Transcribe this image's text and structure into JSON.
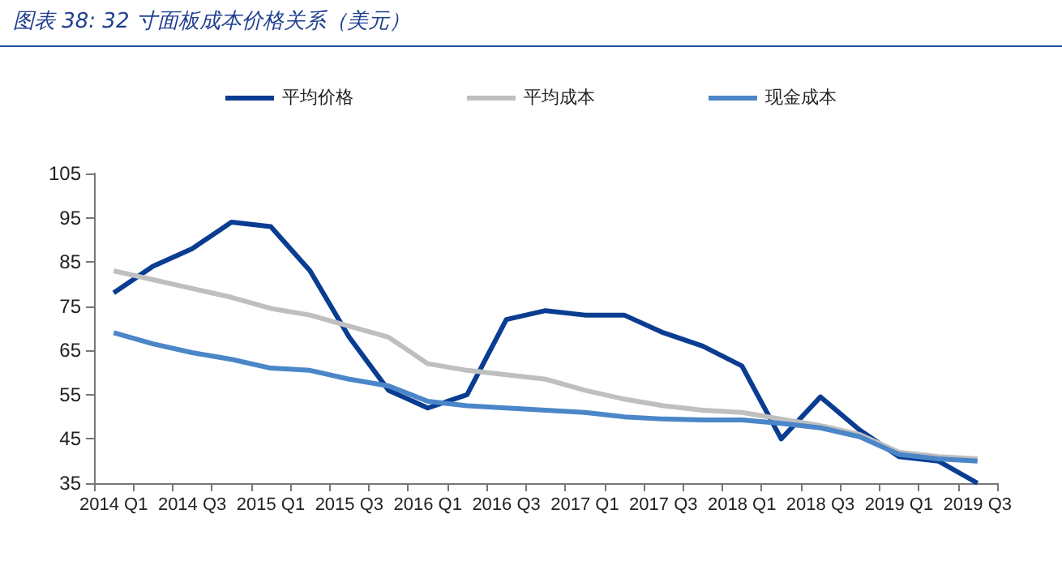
{
  "chart_data": {
    "type": "line",
    "title": "图表 38:  32 寸面板成本价格关系（美元）",
    "categories": [
      "2014 Q1",
      null,
      "2014 Q3",
      null,
      "2015 Q1",
      null,
      "2015 Q3",
      null,
      "2016 Q1",
      null,
      "2016 Q3",
      null,
      "2017 Q1",
      null,
      "2017 Q3",
      null,
      "2018 Q1",
      null,
      "2018 Q3",
      null,
      "2019 Q1",
      null,
      "2019 Q3"
    ],
    "series": [
      {
        "name": "平均价格",
        "color": "#0a3d91",
        "values": [
          78,
          84,
          88,
          94,
          93,
          83,
          68,
          56,
          52,
          55,
          72,
          74,
          73,
          73,
          69,
          66,
          61.5,
          45,
          54.5,
          47,
          41,
          40,
          35
        ]
      },
      {
        "name": "平均成本",
        "color": "#bfbfbf",
        "values": [
          83,
          81,
          79,
          77,
          74.5,
          73,
          70.5,
          68,
          62,
          60.5,
          59.5,
          58.5,
          56,
          54,
          52.5,
          51.5,
          51,
          49.5,
          48,
          46,
          42,
          41,
          40.5
        ]
      },
      {
        "name": "现金成本",
        "color": "#4a86c8",
        "values": [
          69,
          66.5,
          64.5,
          63,
          61,
          60.5,
          58.5,
          57,
          53.5,
          52.5,
          52,
          51.5,
          51,
          50,
          49.5,
          49.3,
          49.3,
          48.5,
          47.5,
          45.5,
          41.5,
          40.5,
          40
        ]
      }
    ],
    "ylim": [
      35,
      105
    ],
    "yticks": [
      35,
      45,
      55,
      65,
      75,
      85,
      95,
      105
    ],
    "grid": false,
    "legend": "top",
    "marker": "none",
    "line_style": "solid"
  }
}
